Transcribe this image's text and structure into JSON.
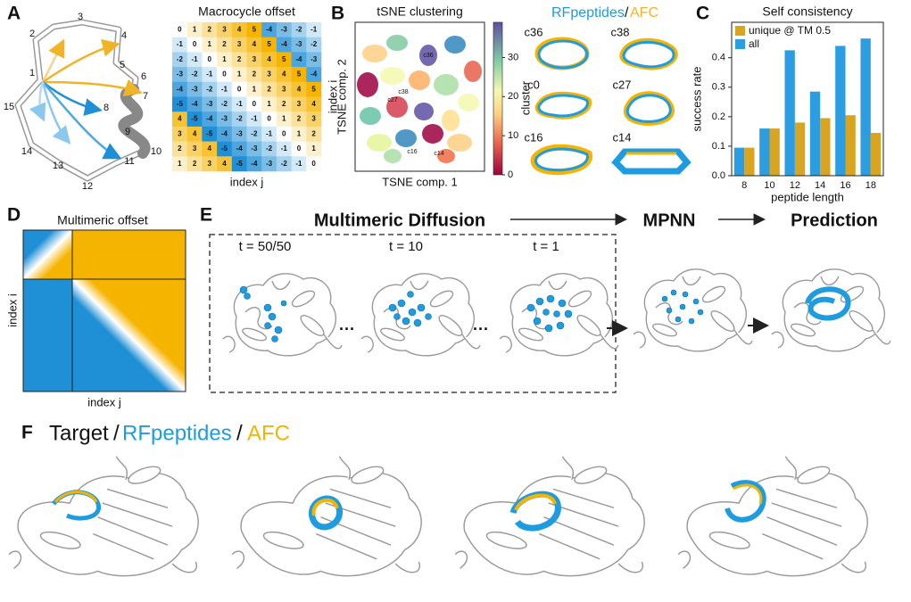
{
  "panel_labels": [
    "A",
    "B",
    "C",
    "D",
    "E",
    "F"
  ],
  "panel_a": {
    "ring_labels": [
      1,
      2,
      3,
      4,
      5,
      6,
      7,
      8,
      9,
      10,
      11,
      12,
      13,
      14,
      15
    ]
  },
  "chart_data": [
    {
      "type": "heatmap",
      "title": "Macrocycle offset",
      "xlabel": "index j",
      "ylabel": "index i",
      "clim": [
        -5,
        5
      ],
      "colors": {
        "positive": "#f5b400",
        "negative": "#1f8fd6"
      },
      "values": [
        [
          0,
          1,
          2,
          3,
          4,
          5,
          -4,
          -3,
          -2,
          -1
        ],
        [
          -1,
          0,
          1,
          2,
          3,
          4,
          5,
          -4,
          -3,
          -2
        ],
        [
          -2,
          -1,
          0,
          1,
          2,
          3,
          4,
          5,
          -4,
          -3
        ],
        [
          -3,
          -2,
          -1,
          0,
          1,
          2,
          3,
          4,
          5,
          -4
        ],
        [
          -4,
          -3,
          -2,
          -1,
          0,
          1,
          2,
          3,
          4,
          5
        ],
        [
          -5,
          -4,
          -3,
          -2,
          -1,
          0,
          1,
          2,
          3,
          4
        ],
        [
          4,
          -5,
          -4,
          -3,
          -2,
          -1,
          0,
          1,
          2,
          3
        ],
        [
          3,
          4,
          -5,
          -4,
          -3,
          -2,
          -1,
          0,
          1,
          2
        ],
        [
          2,
          3,
          4,
          -5,
          -4,
          -3,
          -2,
          -1,
          0,
          1
        ],
        [
          1,
          2,
          3,
          4,
          -5,
          -4,
          -3,
          -2,
          -1,
          0
        ]
      ]
    },
    {
      "type": "scatter",
      "title": "tSNE clustering",
      "xlabel": "TSNE comp. 1",
      "ylabel": "TSNE comp. 2",
      "point_labels": [
        "c36",
        "c38",
        "c27",
        "c16",
        "c14"
      ],
      "colorbar": {
        "label": "cluster",
        "lim": [
          0,
          39
        ],
        "ticks": [
          0,
          10,
          20,
          30
        ]
      }
    },
    {
      "type": "bar",
      "title": "Self consistency",
      "xlabel": "peptide length",
      "ylabel": "success rate",
      "categories": [
        "8",
        "10",
        "12",
        "14",
        "16",
        "18"
      ],
      "series": [
        {
          "name": "unique @ TM 0.5",
          "color": "#d9a521",
          "values": [
            0.095,
            0.16,
            0.18,
            0.195,
            0.205,
            0.145
          ]
        },
        {
          "name": "all",
          "color": "#2b9de0",
          "values": [
            0.095,
            0.16,
            0.425,
            0.285,
            0.44,
            0.465
          ]
        }
      ],
      "ylim": [
        0,
        0.52
      ],
      "yticks": [
        {
          "value": 0,
          "label": "0.0"
        },
        {
          "value": 0.1,
          "label": "0.1"
        },
        {
          "value": 0.2,
          "label": "0.2"
        },
        {
          "value": 0.3,
          "label": "0.3"
        },
        {
          "value": 0.4,
          "label": "0.4"
        }
      ],
      "legend": "upper left"
    }
  ],
  "panel_b_structures": {
    "header": [
      "RFpeptides",
      "/",
      "AFC"
    ],
    "labels": [
      "c36",
      "c38",
      "c0",
      "c27",
      "c16",
      "c14"
    ]
  },
  "panel_d": {
    "title": "Multimeric offset",
    "xlabel": "index j",
    "ylabel": "index i"
  },
  "panel_e": {
    "steps": [
      "Multimeric Diffusion",
      "MPNN",
      "Prediction"
    ],
    "timesteps": [
      "t = 50/50",
      "t = 10",
      "t = 1"
    ]
  },
  "panel_f": {
    "title": [
      "Target",
      "/",
      "RFpeptides",
      "/",
      "AFC"
    ]
  }
}
